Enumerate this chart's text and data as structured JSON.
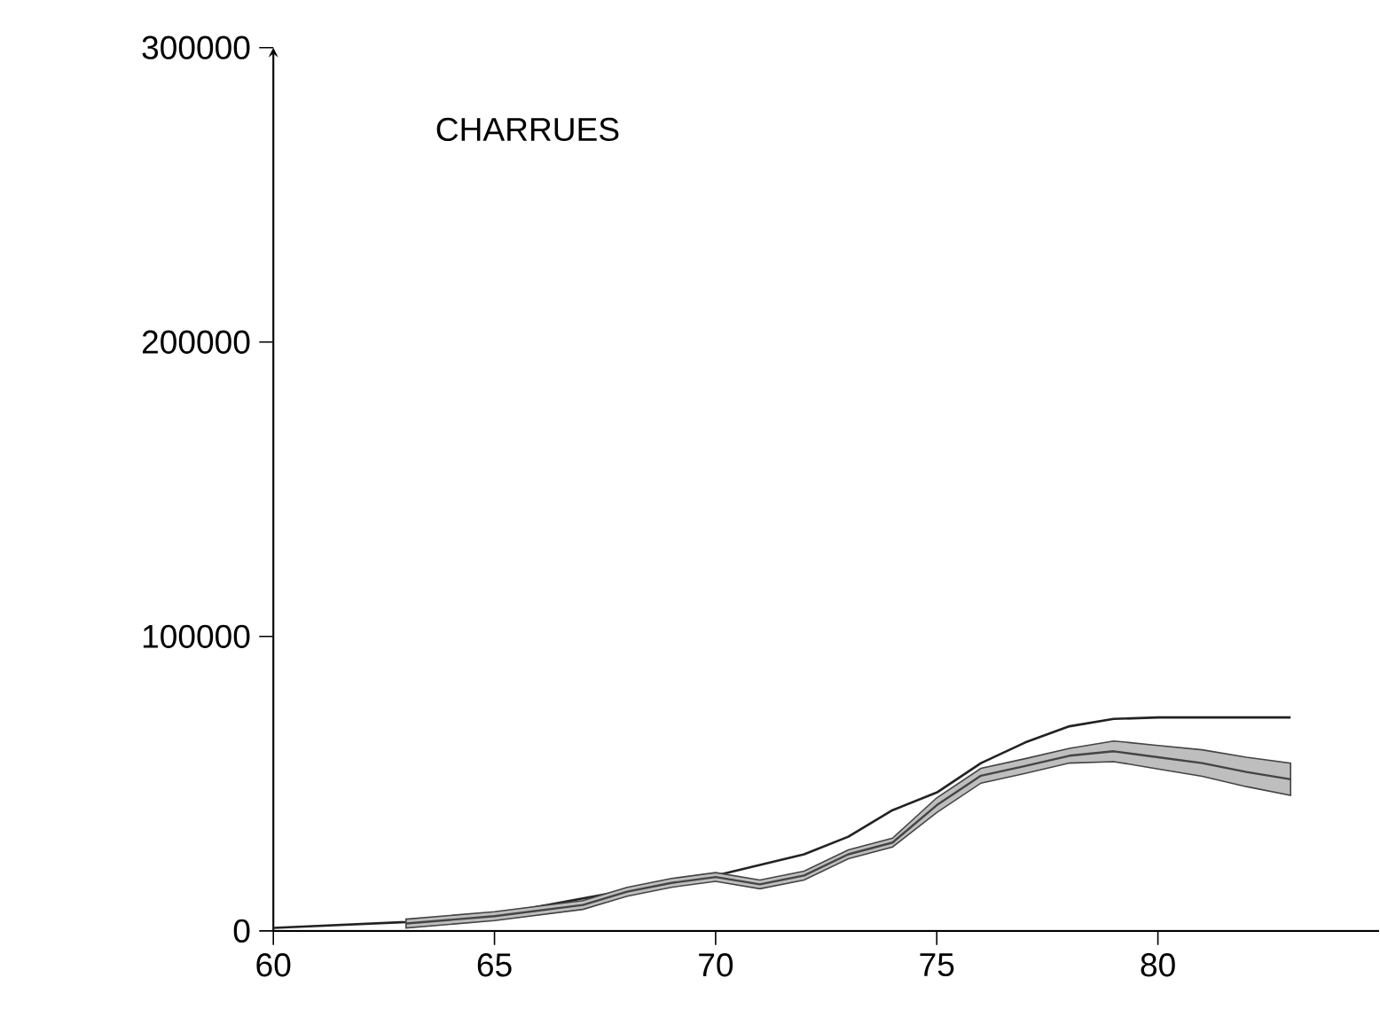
{
  "chart_data": {
    "type": "line",
    "title": "CHARRUES",
    "xlim": [
      60,
      85
    ],
    "xticks": [
      60,
      65,
      70,
      75,
      80
    ],
    "ylim": [
      0,
      300000
    ],
    "yticks": [
      0,
      100000,
      200000,
      300000
    ],
    "series": [
      {
        "color": "#222222",
        "x": [
          60,
          63,
          65,
          68,
          70,
          72,
          73,
          74,
          75,
          76,
          77,
          78,
          79,
          80,
          83
        ],
        "values": [
          1000,
          3000,
          5500,
          13800,
          18800,
          26000,
          32000,
          41000,
          47000,
          57000,
          64000,
          69500,
          72000,
          72500,
          72500
        ]
      },
      {
        "color": "#444444",
        "x": [
          63,
          65,
          67,
          68,
          69,
          70,
          71,
          72,
          73,
          74,
          75,
          76,
          77,
          78,
          79,
          80,
          81,
          82,
          83
        ],
        "values": [
          2500,
          5000,
          8800,
          13300,
          16300,
          18300,
          15800,
          18800,
          26000,
          30000,
          42700,
          52700,
          56000,
          59500,
          61000,
          59000,
          57000,
          54000,
          51500
        ],
        "lower": [
          1000,
          3500,
          7300,
          11800,
          14800,
          16800,
          14300,
          17300,
          24500,
          28500,
          40200,
          50200,
          53500,
          57000,
          57500,
          55000,
          52500,
          49000,
          46000
        ],
        "upper": [
          4000,
          6500,
          10300,
          14800,
          17800,
          19800,
          17300,
          20300,
          27500,
          31500,
          45200,
          55200,
          58500,
          62000,
          64500,
          63000,
          61500,
          59000,
          57000
        ]
      }
    ]
  }
}
